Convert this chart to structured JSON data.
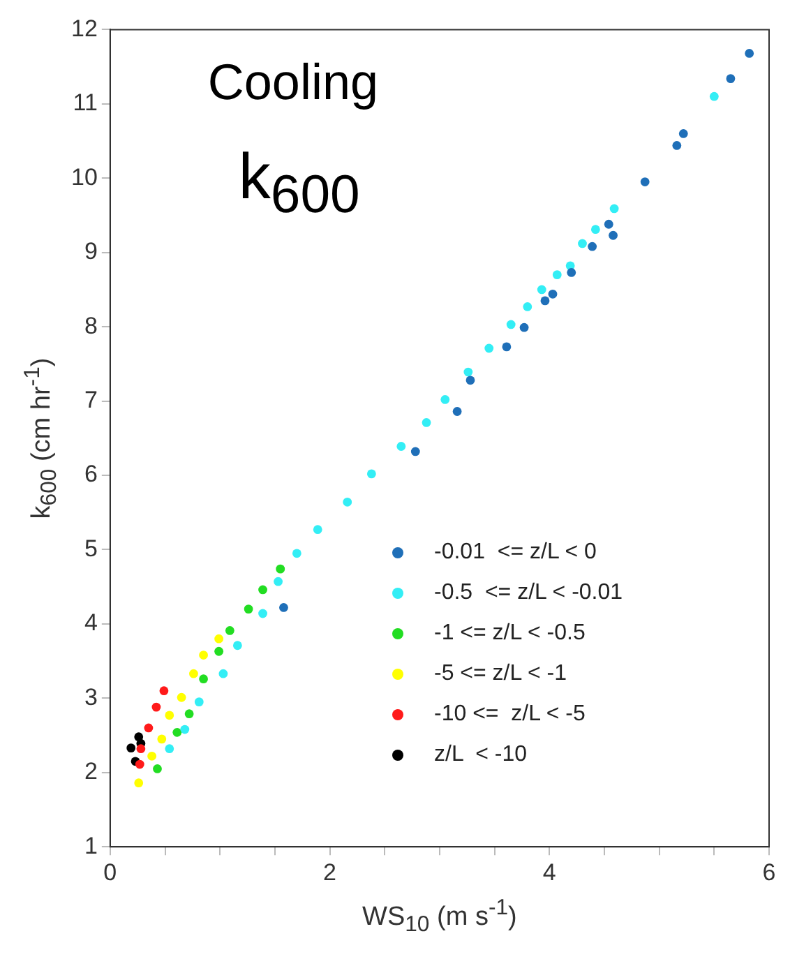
{
  "chart_data": {
    "type": "scatter",
    "xlabel": "WS$_{10}$ (m s$^{-1}$)",
    "ylabel": "k$_{600}$ (cm hr$^{-1}$)",
    "annotations": [
      "Cooling",
      "k$_{600}$"
    ],
    "xlim": [
      0,
      6
    ],
    "xticks": [
      0,
      {
        "value": 0.5,
        "label": null
      },
      {
        "value": 1,
        "label": null
      },
      {
        "value": 1.5,
        "label": null
      },
      2,
      {
        "value": 2.5,
        "label": null
      },
      {
        "value": 3,
        "label": null
      },
      {
        "value": 3.5,
        "label": null
      },
      4,
      {
        "value": 4.5,
        "label": null
      },
      {
        "value": 5,
        "label": null
      },
      {
        "value": 5.5,
        "label": null
      },
      6
    ],
    "ylim": [
      1,
      12
    ],
    "yticks": [
      1,
      2,
      3,
      4,
      5,
      6,
      7,
      8,
      9,
      10,
      11,
      12
    ],
    "grid": false,
    "legend": "bottom right",
    "marker": "circle",
    "series": [
      {
        "name": "-0.01  <= z/L < 0",
        "color": "#1f6fb8",
        "x": [
          5.82,
          5.65,
          5.16,
          5.22,
          4.87,
          4.54,
          4.58,
          4.39,
          4.2,
          4.03,
          3.96,
          3.77,
          3.61,
          3.28,
          3.16,
          2.78,
          1.58
        ],
        "values": [
          11.68,
          11.34,
          10.44,
          10.6,
          9.95,
          9.38,
          9.23,
          9.08,
          8.73,
          8.44,
          8.35,
          7.99,
          7.73,
          7.28,
          6.86,
          6.32,
          4.22
        ]
      },
      {
        "name": "-0.5  <= z/L < -0.01",
        "color": "#33eef5",
        "x": [
          5.5,
          4.59,
          4.42,
          4.3,
          4.19,
          4.07,
          3.93,
          3.8,
          3.65,
          3.45,
          3.26,
          3.05,
          2.88,
          2.65,
          2.38,
          2.16,
          1.89,
          1.7,
          1.53,
          1.39,
          1.16,
          1.03,
          0.81,
          0.68,
          0.54
        ],
        "values": [
          11.1,
          9.59,
          9.31,
          9.12,
          8.82,
          8.7,
          8.5,
          8.27,
          8.03,
          7.71,
          7.39,
          7.02,
          6.71,
          6.39,
          6.02,
          5.64,
          5.27,
          4.95,
          4.57,
          4.14,
          3.71,
          3.33,
          2.95,
          2.58,
          2.32
        ]
      },
      {
        "name": "-1 <= z/L < -0.5",
        "color": "#22dd22",
        "x": [
          1.55,
          1.39,
          1.26,
          1.09,
          0.99,
          0.85,
          0.72,
          0.61,
          0.43
        ],
        "values": [
          4.74,
          4.46,
          4.2,
          3.91,
          3.63,
          3.26,
          2.79,
          2.54,
          2.05
        ]
      },
      {
        "name": "-5 <= z/L < -1",
        "color": "#ffff00",
        "x": [
          0.99,
          0.85,
          0.76,
          0.65,
          0.54,
          0.47,
          0.38,
          0.26
        ],
        "values": [
          3.8,
          3.58,
          3.33,
          3.01,
          2.77,
          2.45,
          2.22,
          1.86
        ]
      },
      {
        "name": "-10 <=  z/L < -5",
        "color": "#ff1a1a",
        "x": [
          0.49,
          0.42,
          0.35,
          0.28,
          0.27
        ],
        "values": [
          3.1,
          2.88,
          2.6,
          2.32,
          2.11
        ]
      },
      {
        "name": "z/L  < -10",
        "color": "#000000",
        "x": [
          0.26,
          0.28,
          0.19,
          0.23
        ],
        "values": [
          2.48,
          2.39,
          2.33,
          2.15
        ]
      }
    ]
  }
}
